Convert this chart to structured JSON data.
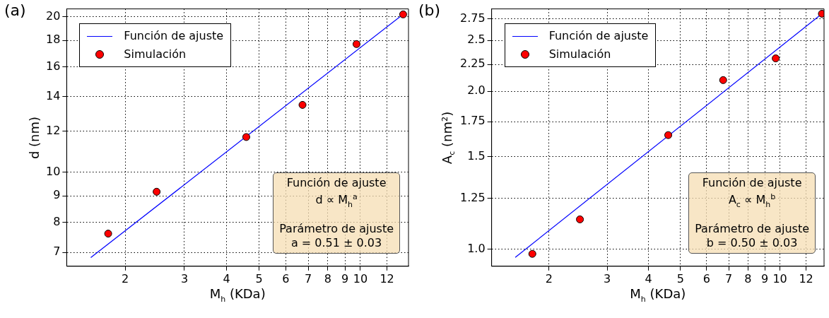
{
  "chart_data": [
    {
      "type": "scatter",
      "title": "(a)",
      "xlabel": "M$_{h}$ (KDa)",
      "ylabel": "d (nm)",
      "series": [
        {
          "name": "Función de ajuste",
          "type": "line",
          "color": "#0000ff",
          "x": [
            1.58,
            13.65
          ],
          "values": [
            6.84,
            20.4
          ]
        },
        {
          "name": "Simulación",
          "type": "scatter",
          "marker": "circle",
          "color": "#ff0000",
          "x": [
            1.78,
            2.48,
            4.58,
            6.73,
            9.74,
            13.4
          ],
          "values": [
            7.61,
            9.17,
            11.7,
            13.5,
            17.7,
            20.2
          ]
        }
      ],
      "xlim": [
        1.34,
        13.9
      ],
      "ylim": [
        6.58,
        20.7
      ],
      "xticks": [
        2,
        3,
        4,
        5,
        6,
        7,
        8,
        9,
        10,
        12
      ],
      "yticks": [
        7,
        8,
        9,
        10,
        12,
        14,
        16,
        18,
        20
      ],
      "log": "xy",
      "grid": true,
      "legend": "top left",
      "annotations": [
        "Función de ajuste",
        "d ∝ M$_{h}$$^{a}$",
        "Parámetro de ajuste",
        "a = 0.51 ± 0.03"
      ]
    },
    {
      "type": "scatter",
      "title": "(b)",
      "xlabel": "M$_{h}$ (KDa)",
      "ylabel": "A$_{c}$ (nm²)",
      "series": [
        {
          "name": "Función de ajuste",
          "type": "line",
          "color": "#0000ff",
          "x": [
            1.58,
            13.5
          ],
          "values": [
            0.965,
            2.82
          ]
        },
        {
          "name": "Simulación",
          "type": "scatter",
          "marker": "circle",
          "color": "#ff0000",
          "x": [
            1.78,
            2.48,
            4.59,
            6.73,
            9.71,
            13.4
          ],
          "values": [
            0.98,
            1.14,
            1.65,
            2.1,
            2.31,
            2.81
          ]
        }
      ],
      "xlim": [
        1.34,
        13.6
      ],
      "ylim": [
        0.928,
        2.87
      ],
      "xticks": [
        2,
        3,
        4,
        5,
        6,
        7,
        8,
        9,
        10,
        12
      ],
      "yticks": [
        {
          "value": 1,
          "label": "1.0"
        },
        1.25,
        1.5,
        1.75,
        {
          "value": 2,
          "label": "2.0"
        },
        2.25,
        2.5,
        2.75
      ],
      "log": "xy",
      "grid": true,
      "legend": "top left",
      "annotations": [
        "Función de ajuste",
        "A$_{c}$ ∝ M$_{h}$$^{b}$",
        "Parámetro de ajuste",
        "b = 0.50 ± 0.03"
      ]
    }
  ]
}
